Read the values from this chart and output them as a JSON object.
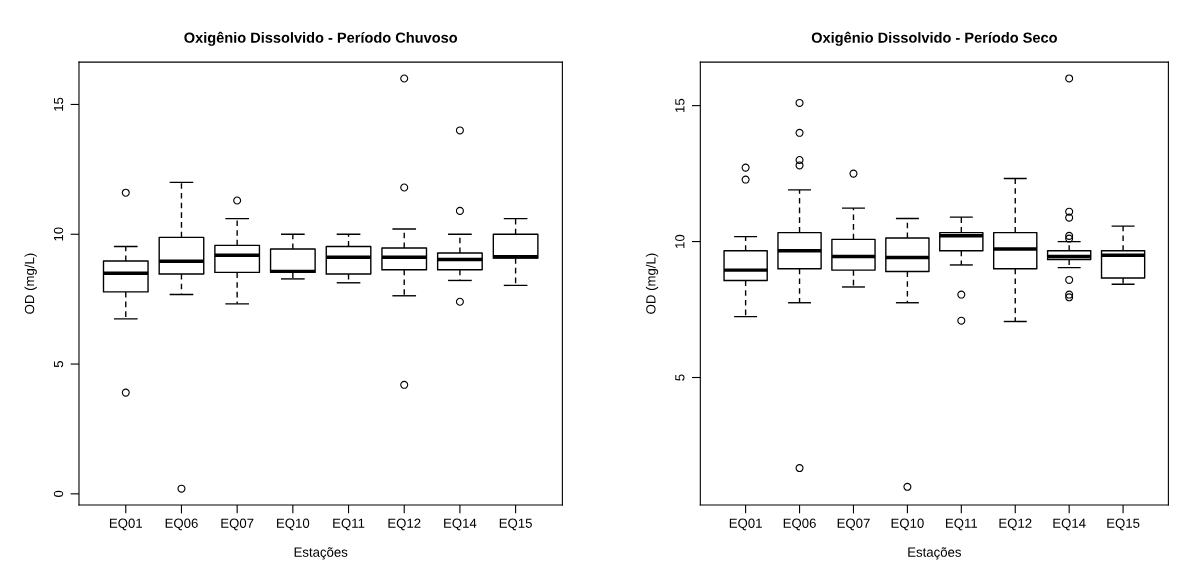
{
  "chart_data": [
    {
      "type": "box",
      "title": "Oxigênio Dissolvido - Período Chuvoso",
      "xlabel": "Estações",
      "ylabel": "OD (mg/L)",
      "categories": [
        "EQ01",
        "EQ06",
        "EQ07",
        "EQ10",
        "EQ11",
        "EQ12",
        "EQ14",
        "EQ15"
      ],
      "ylim": [
        -0.43,
        16.63
      ],
      "yticks": [
        0,
        5,
        10,
        15
      ],
      "grid": false,
      "boxes": [
        {
          "low": 6.74,
          "q1": 7.78,
          "median": 8.5,
          "q3": 8.97,
          "high": 9.53,
          "outliers": [
            11.6,
            3.9
          ]
        },
        {
          "low": 7.68,
          "q1": 8.47,
          "median": 8.96,
          "q3": 9.88,
          "high": 12.0,
          "outliers": [
            0.2
          ]
        },
        {
          "low": 7.32,
          "q1": 8.53,
          "median": 9.19,
          "q3": 9.57,
          "high": 10.6,
          "outliers": [
            11.3
          ]
        },
        {
          "low": 8.28,
          "q1": 8.53,
          "median": 8.57,
          "q3": 9.43,
          "high": 10.0
        },
        {
          "low": 8.13,
          "q1": 8.47,
          "median": 9.11,
          "q3": 9.53,
          "high": 10.0
        },
        {
          "low": 7.63,
          "q1": 8.63,
          "median": 9.11,
          "q3": 9.47,
          "high": 10.2,
          "outliers": [
            16.0,
            11.8,
            4.2
          ]
        },
        {
          "low": 8.22,
          "q1": 8.63,
          "median": 9.03,
          "q3": 9.28,
          "high": 10.0,
          "outliers": [
            14.0,
            10.9,
            7.4
          ]
        },
        {
          "low": 8.03,
          "q1": 9.08,
          "median": 9.13,
          "q3": 10.0,
          "high": 10.6
        }
      ]
    },
    {
      "type": "box",
      "title": "Oxigênio Dissolvido - Período Seco",
      "xlabel": "Estações",
      "ylabel": "OD (mg/L)",
      "categories": [
        "EQ01",
        "EQ06",
        "EQ07",
        "EQ10",
        "EQ11",
        "EQ12",
        "EQ14",
        "EQ15"
      ],
      "ylim": [
        0.31,
        16.6
      ],
      "yticks": [
        5,
        10,
        15
      ],
      "grid": false,
      "boxes": [
        {
          "low": 7.24,
          "q1": 8.57,
          "median": 8.95,
          "q3": 9.66,
          "high": 10.18,
          "outliers": [
            12.72,
            12.28
          ]
        },
        {
          "low": 7.75,
          "q1": 9.0,
          "median": 9.66,
          "q3": 10.33,
          "high": 11.9,
          "outliers": [
            15.1,
            14.0,
            13.0,
            12.8,
            1.67
          ]
        },
        {
          "low": 8.33,
          "q1": 8.95,
          "median": 9.45,
          "q3": 10.08,
          "high": 11.23,
          "outliers": [
            12.5
          ]
        },
        {
          "low": 7.75,
          "q1": 8.9,
          "median": 9.41,
          "q3": 10.13,
          "high": 10.85,
          "outliers": [
            0.98
          ]
        },
        {
          "low": 9.14,
          "q1": 9.66,
          "median": 10.21,
          "q3": 10.33,
          "high": 10.9,
          "outliers": [
            8.05,
            7.09
          ]
        },
        {
          "low": 7.06,
          "q1": 9.0,
          "median": 9.73,
          "q3": 10.33,
          "high": 12.32
        },
        {
          "low": 9.04,
          "q1": 9.34,
          "median": 9.45,
          "q3": 9.66,
          "high": 10.0,
          "outliers": [
            16.0,
            11.1,
            10.88,
            10.21,
            10.11,
            8.59,
            8.05,
            7.95
          ]
        },
        {
          "low": 8.43,
          "q1": 8.66,
          "median": 9.5,
          "q3": 9.66,
          "high": 10.57
        }
      ]
    }
  ]
}
